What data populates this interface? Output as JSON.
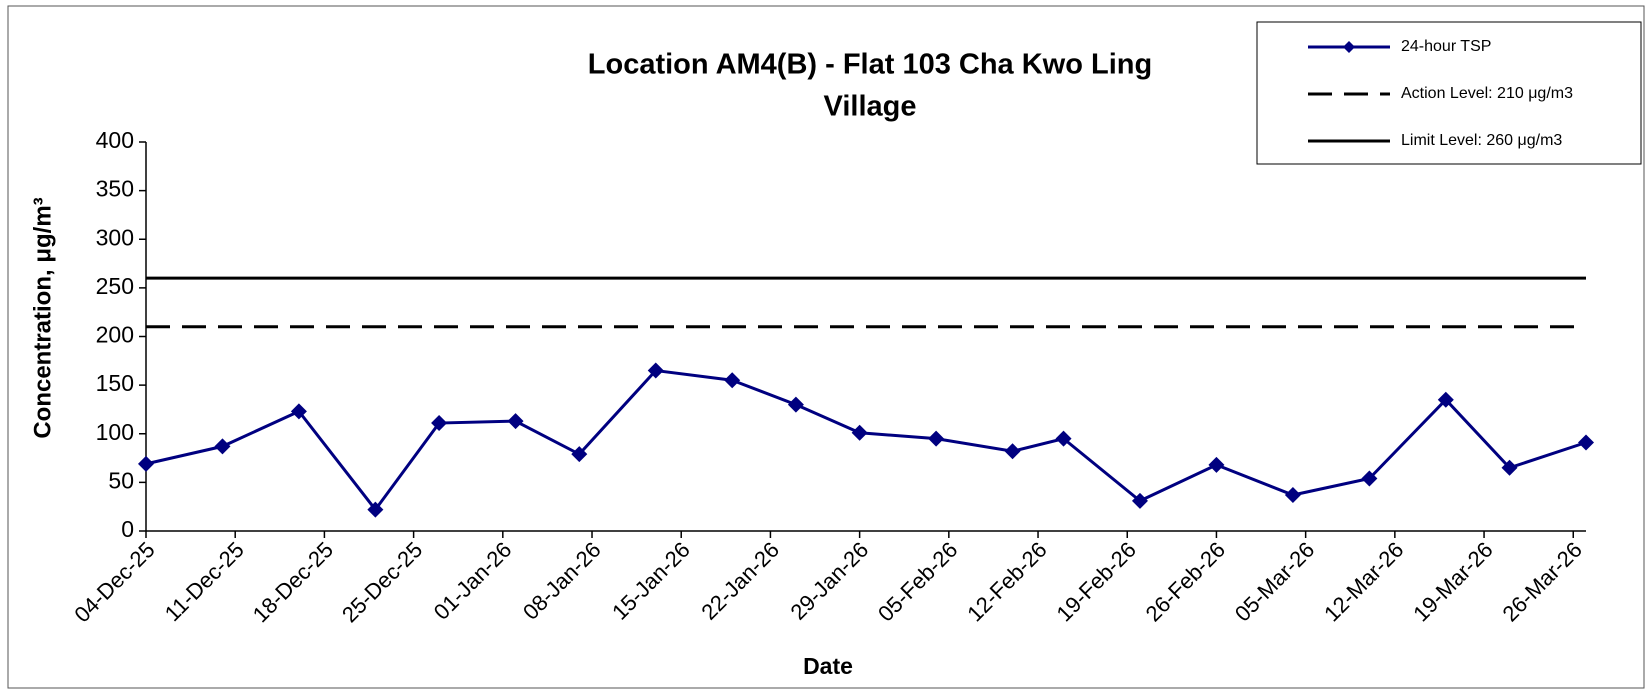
{
  "chart_data": {
    "type": "line",
    "title": "Location AM4(B) - Flat 103 Cha Kwo Ling Village",
    "title_lines": [
      "Location AM4(B) - Flat 103 Cha Kwo Ling",
      "Village"
    ],
    "x_label": "Date",
    "y_label": "Concentration, μg/m³",
    "x": [
      "2025-12-04",
      "2025-12-10",
      "2025-12-16",
      "2025-12-22",
      "2025-12-27",
      "2026-01-02",
      "2026-01-07",
      "2026-01-13",
      "2026-01-19",
      "2026-01-24",
      "2026-01-29",
      "2026-02-04",
      "2026-02-10",
      "2026-02-14",
      "2026-02-20",
      "2026-02-26",
      "2026-03-04",
      "2026-03-10",
      "2026-03-16",
      "2026-03-21",
      "2026-03-27"
    ],
    "series": [
      {
        "name": "24-hour TSP",
        "color": "#000080",
        "values": [
          69,
          87,
          123,
          22,
          111,
          113,
          79,
          165,
          155,
          130,
          101,
          95,
          82,
          95,
          31,
          68,
          37,
          54,
          135,
          65,
          91
        ]
      }
    ],
    "reference_lines": [
      {
        "name": "Action Level: 210 μg/m3",
        "value": 210,
        "style": "dashed",
        "color": "#000000"
      },
      {
        "name": "Limit Level: 260 μg/m3",
        "value": 260,
        "style": "solid",
        "color": "#000000"
      }
    ],
    "xlim": [
      "2025-12-04",
      "2026-03-27"
    ],
    "xticks": [
      {
        "value": "2025-12-04",
        "label": "04-Dec-25"
      },
      {
        "value": "2025-12-11",
        "label": "11-Dec-25"
      },
      {
        "value": "2025-12-18",
        "label": "18-Dec-25"
      },
      {
        "value": "2025-12-25",
        "label": "25-Dec-25"
      },
      {
        "value": "2026-01-01",
        "label": "01-Jan-26"
      },
      {
        "value": "2026-01-08",
        "label": "08-Jan-26"
      },
      {
        "value": "2026-01-15",
        "label": "15-Jan-26"
      },
      {
        "value": "2026-01-22",
        "label": "22-Jan-26"
      },
      {
        "value": "2026-01-29",
        "label": "29-Jan-26"
      },
      {
        "value": "2026-02-05",
        "label": "05-Feb-26"
      },
      {
        "value": "2026-02-12",
        "label": "12-Feb-26"
      },
      {
        "value": "2026-02-19",
        "label": "19-Feb-26"
      },
      {
        "value": "2026-02-26",
        "label": "26-Feb-26"
      },
      {
        "value": "2026-03-05",
        "label": "05-Mar-26"
      },
      {
        "value": "2026-03-12",
        "label": "12-Mar-26"
      },
      {
        "value": "2026-03-19",
        "label": "19-Mar-26"
      },
      {
        "value": "2026-03-26",
        "label": "26-Mar-26"
      }
    ],
    "ylim": [
      0,
      400
    ],
    "yticks": [
      0,
      50,
      100,
      150,
      200,
      250,
      300,
      350,
      400
    ],
    "grid": false,
    "legend": "top-right"
  }
}
